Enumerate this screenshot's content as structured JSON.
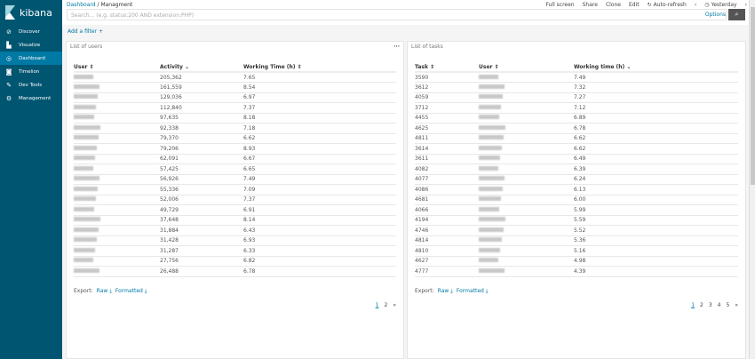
{
  "app": {
    "name": "kibana"
  },
  "sidebar": {
    "items": [
      {
        "label": "Discover",
        "icon": "compass-icon",
        "g": "⊘"
      },
      {
        "label": "Visualize",
        "icon": "bar-chart-icon",
        "g": "▙"
      },
      {
        "label": "Dashboard",
        "icon": "dashboard-icon",
        "g": "◎",
        "active": true
      },
      {
        "label": "Timelion",
        "icon": "timelion-icon",
        "g": "◙"
      },
      {
        "label": "Dev Tools",
        "icon": "wrench-icon",
        "g": "✎"
      },
      {
        "label": "Management",
        "icon": "gear-icon",
        "g": "⚙"
      }
    ]
  },
  "breadcrumb": {
    "root": "Dashboard",
    "sep": "/",
    "current": "Managment"
  },
  "search": {
    "placeholder": "Search... (e.g. status:200 AND extension:PHP)",
    "options": "Options"
  },
  "menu": {
    "fullscreen": "Full screen",
    "share": "Share",
    "clone": "Clone",
    "edit": "Edit",
    "autorefresh": "Auto-refresh",
    "time": "Yesterday"
  },
  "filter": {
    "add": "Add a filter +"
  },
  "users_panel": {
    "title": "List of users",
    "headers": [
      "User ⇕",
      "Activity ⌄",
      "Working Time (h) ⇕"
    ],
    "rows": [
      [
        "205,362",
        "7.65"
      ],
      [
        "161,559",
        "8.54"
      ],
      [
        "129,036",
        "6.97"
      ],
      [
        "112,840",
        "7.37"
      ],
      [
        "97,635",
        "8.18"
      ],
      [
        "92,338",
        "7.18"
      ],
      [
        "79,370",
        "6.62"
      ],
      [
        "79,206",
        "8.93"
      ],
      [
        "62,091",
        "6.67"
      ],
      [
        "57,425",
        "6.65"
      ],
      [
        "56,926",
        "7.49"
      ],
      [
        "55,336",
        "7.09"
      ],
      [
        "52,006",
        "7.37"
      ],
      [
        "49,729",
        "6.91"
      ],
      [
        "37,648",
        "8.14"
      ],
      [
        "31,884",
        "6.43"
      ],
      [
        "31,428",
        "6.93"
      ],
      [
        "31,287",
        "6.33"
      ],
      [
        "27,756",
        "6.82"
      ],
      [
        "26,488",
        "6.78"
      ]
    ],
    "export": "Export:",
    "raw": "Raw ⤓",
    "formatted": "Formatted ⤓",
    "pages": [
      "1",
      "2",
      "»"
    ]
  },
  "tasks_panel": {
    "title": "List of tasks",
    "headers": [
      "Task ⇕",
      "User ⇕",
      "Working time (h) ⌄"
    ],
    "rows": [
      [
        "3590",
        "7.49"
      ],
      [
        "3612",
        "7.32"
      ],
      [
        "4059",
        "7.27"
      ],
      [
        "3712",
        "7.12"
      ],
      [
        "4455",
        "6.89"
      ],
      [
        "4625",
        "6.78"
      ],
      [
        "4811",
        "6.62"
      ],
      [
        "3614",
        "6.62"
      ],
      [
        "3611",
        "6.49"
      ],
      [
        "4082",
        "6.39"
      ],
      [
        "4077",
        "6.24"
      ],
      [
        "4086",
        "6.13"
      ],
      [
        "4681",
        "6.00"
      ],
      [
        "4066",
        "5.99"
      ],
      [
        "4194",
        "5.59"
      ],
      [
        "4746",
        "5.52"
      ],
      [
        "4814",
        "5.36"
      ],
      [
        "4810",
        "5.16"
      ],
      [
        "4627",
        "4.98"
      ],
      [
        "4777",
        "4.39"
      ]
    ],
    "export": "Export:",
    "raw": "Raw ⤓",
    "formatted": "Formatted ⤓",
    "pages": [
      "1",
      "2",
      "3",
      "4",
      "5",
      "»"
    ]
  }
}
